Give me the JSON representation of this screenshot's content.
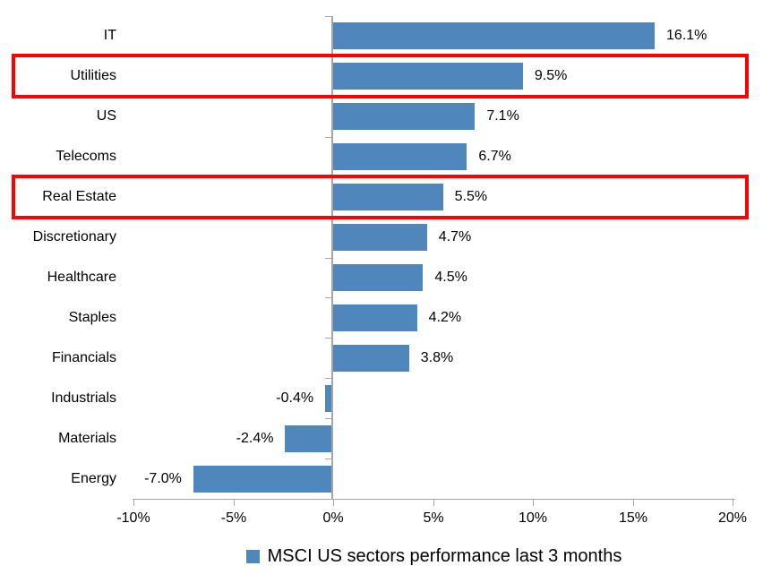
{
  "chart_data": {
    "type": "bar",
    "orientation": "horizontal",
    "title": "",
    "categories": [
      "IT",
      "Utilities",
      "US",
      "Telecoms",
      "Real Estate",
      "Discretionary",
      "Healthcare",
      "Staples",
      "Financials",
      "Industrials",
      "Materials",
      "Energy"
    ],
    "values": [
      16.1,
      9.5,
      7.1,
      6.7,
      5.5,
      4.7,
      4.5,
      4.2,
      3.8,
      -0.4,
      -2.4,
      -7.0
    ],
    "data_labels": [
      "16.1%",
      "9.5%",
      "7.1%",
      "6.7%",
      "5.5%",
      "4.7%",
      "4.5%",
      "4.2%",
      "3.8%",
      "-0.4%",
      "-2.4%",
      "-7.0%"
    ],
    "x_axis": {
      "range": [
        -10,
        20
      ],
      "tick_values": [
        -10,
        -5,
        0,
        5,
        10,
        15,
        20
      ],
      "tick_labels": [
        "-10%",
        "-5%",
        "0%",
        "5%",
        "10%",
        "15%",
        "20%"
      ]
    },
    "grid": "off",
    "legend": {
      "position": "bottom-center",
      "marker": "square",
      "label": "MSCI US sectors performance last 3 months"
    },
    "highlight": {
      "rows": [
        "Utilities",
        "Real Estate"
      ],
      "color": "#FF0000"
    },
    "colors": {
      "bar": "#4F86BC",
      "axis": "#A6A6A6",
      "text": "#000000"
    }
  }
}
